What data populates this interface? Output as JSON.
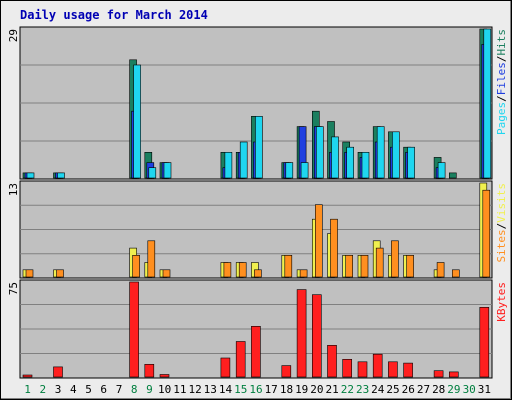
{
  "chart_data": {
    "type": "bar",
    "title": "Daily usage for March 2014",
    "x": [
      "1",
      "2",
      "3",
      "4",
      "5",
      "6",
      "7",
      "8",
      "9",
      "10",
      "11",
      "12",
      "13",
      "14",
      "15",
      "16",
      "17",
      "18",
      "19",
      "20",
      "21",
      "22",
      "23",
      "24",
      "25",
      "26",
      "27",
      "28",
      "29",
      "30",
      "31"
    ],
    "weekend_days": [
      "1",
      "2",
      "8",
      "9",
      "15",
      "16",
      "22",
      "23",
      "29",
      "30"
    ],
    "colors": {
      "weekday_label": "#000000",
      "weekend_label": "#007f3f",
      "hits": "#1b7f5f",
      "files": "#1f3fe0",
      "pages": "#1fd6f0",
      "visits": "#f0f04f",
      "sites": "#ff8f1f",
      "kbytes": "#ff1f1f",
      "plot_bg": "#c0c0c0",
      "frame_bg": "#ececec"
    },
    "panels": [
      {
        "ymax_label": "29",
        "ymax": 29,
        "legend": [
          {
            "name": "Pages",
            "color": "#1fd6f0"
          },
          {
            "name": "Files",
            "color": "#1f3fe0"
          },
          {
            "name": "Hits",
            "color": "#1b7f5f"
          }
        ],
        "series": [
          {
            "name": "Hits",
            "color": "#1b7f5f",
            "values": [
              1,
              0,
              1,
              0,
              0,
              0,
              0,
              23,
              5,
              3,
              0,
              0,
              0,
              5,
              5,
              12,
              0,
              3,
              10,
              13,
              11,
              7,
              5,
              10,
              9,
              6,
              0,
              4,
              1,
              0,
              29
            ]
          },
          {
            "name": "Files",
            "color": "#1f3fe0",
            "values": [
              1,
              0,
              1,
              0,
              0,
              0,
              0,
              13,
              3,
              3,
              0,
              0,
              0,
              2,
              5,
              7,
              0,
              3,
              10,
              10,
              5,
              5,
              4,
              7,
              6,
              5,
              0,
              2,
              0,
              0,
              26
            ]
          },
          {
            "name": "Pages",
            "color": "#1fd6f0",
            "values": [
              1,
              0,
              1,
              0,
              0,
              0,
              0,
              22,
              2,
              3,
              0,
              0,
              0,
              5,
              7,
              12,
              0,
              3,
              3,
              10,
              8,
              6,
              5,
              10,
              9,
              6,
              0,
              3,
              0,
              0,
              29
            ]
          }
        ]
      },
      {
        "ymax_label": "13",
        "ymax": 13,
        "legend": [
          {
            "name": "Sites",
            "color": "#ff8f1f"
          },
          {
            "name": "Visits",
            "color": "#f0f04f"
          }
        ],
        "series": [
          {
            "name": "Visits",
            "color": "#f0f04f",
            "values": [
              1,
              0,
              1,
              0,
              0,
              0,
              0,
              4,
              2,
              1,
              0,
              0,
              0,
              2,
              2,
              2,
              0,
              3,
              1,
              8,
              6,
              3,
              3,
              5,
              3,
              3,
              0,
              1,
              0,
              0,
              13
            ]
          },
          {
            "name": "Sites",
            "color": "#ff8f1f",
            "values": [
              1,
              0,
              1,
              0,
              0,
              0,
              0,
              3,
              5,
              1,
              0,
              0,
              0,
              2,
              2,
              1,
              0,
              3,
              1,
              10,
              8,
              3,
              3,
              4,
              5,
              3,
              0,
              2,
              1,
              0,
              12
            ]
          }
        ]
      },
      {
        "ymax_label": "75",
        "ymax": 75,
        "legend": [
          {
            "name": "KBytes",
            "color": "#ff1f1f"
          }
        ],
        "series": [
          {
            "name": "KBytes",
            "color": "#ff1f1f",
            "values": [
              1,
              0,
              8,
              0,
              0,
              0,
              0,
              75,
              10,
              2,
              0,
              0,
              0,
              15,
              28,
              40,
              0,
              9,
              69,
              65,
              25,
              14,
              12,
              18,
              12,
              11,
              0,
              5,
              4,
              0,
              55
            ]
          }
        ]
      }
    ]
  }
}
